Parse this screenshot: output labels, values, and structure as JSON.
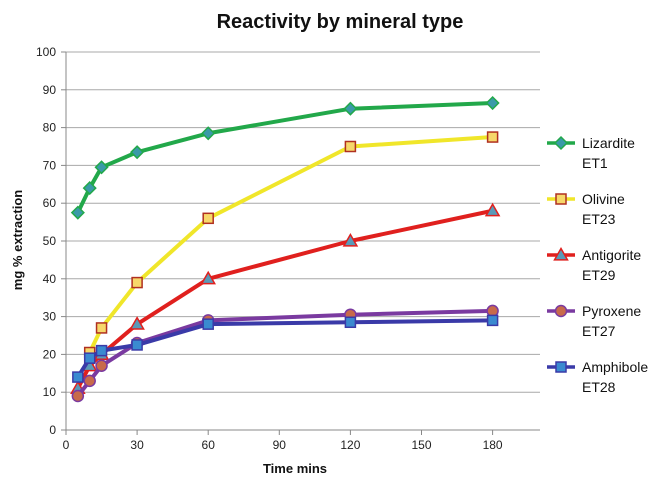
{
  "chart_data": {
    "type": "line",
    "title": "Reactivity by mineral type",
    "xlabel": "Time mins",
    "ylabel": "mg % extraction",
    "xlim": [
      0,
      200
    ],
    "ylim": [
      0,
      100
    ],
    "xticks": [
      0,
      30,
      60,
      90,
      120,
      150,
      180
    ],
    "yticks": [
      0,
      10,
      20,
      30,
      40,
      50,
      60,
      70,
      80,
      90,
      100
    ],
    "grid": "horizontal",
    "legend_position": "right",
    "series": [
      {
        "name": "Lizardite ET1",
        "legend_lines": [
          "Lizardite",
          "ET1"
        ],
        "color": "#22a84a",
        "marker": "diamond",
        "marker_fill": "#3a9aa8",
        "x": [
          5,
          10,
          15,
          30,
          60,
          120,
          180
        ],
        "y": [
          57.5,
          64,
          69.5,
          73.5,
          78.5,
          85,
          86.5
        ]
      },
      {
        "name": "Olivine ET23",
        "legend_lines": [
          "Olivine",
          "ET23"
        ],
        "color": "#f0e62a",
        "marker": "square",
        "marker_fill": "#f7d86a",
        "marker_stroke": "#b03020",
        "x": [
          10,
          15,
          30,
          60,
          120,
          180
        ],
        "y": [
          20.5,
          27,
          39,
          56,
          75,
          77.5
        ]
      },
      {
        "name": "Antigorite ET29",
        "legend_lines": [
          "Antigorite",
          "ET29"
        ],
        "color": "#e0201e",
        "marker": "triangle",
        "marker_fill": "#5a9ab8",
        "x": [
          5,
          10,
          15,
          30,
          60,
          120,
          180
        ],
        "y": [
          11,
          17,
          20,
          28,
          40,
          50,
          58
        ]
      },
      {
        "name": "Pyroxene ET27",
        "legend_lines": [
          "Pyroxene",
          "ET27"
        ],
        "color": "#7a3aa0",
        "marker": "circle",
        "marker_fill": "#c86a4a",
        "x": [
          5,
          10,
          15,
          30,
          60,
          120,
          180
        ],
        "y": [
          9,
          13,
          17,
          23,
          29,
          30.5,
          31.5
        ]
      },
      {
        "name": "Amphibole ET28",
        "legend_lines": [
          "Amphibole",
          "ET28"
        ],
        "color": "#3a3aa8",
        "marker": "square",
        "marker_fill": "#3a8ad0",
        "x": [
          5,
          10,
          15,
          30,
          60,
          120,
          180
        ],
        "y": [
          14,
          19,
          21,
          22.5,
          28,
          28.5,
          29
        ]
      }
    ]
  }
}
